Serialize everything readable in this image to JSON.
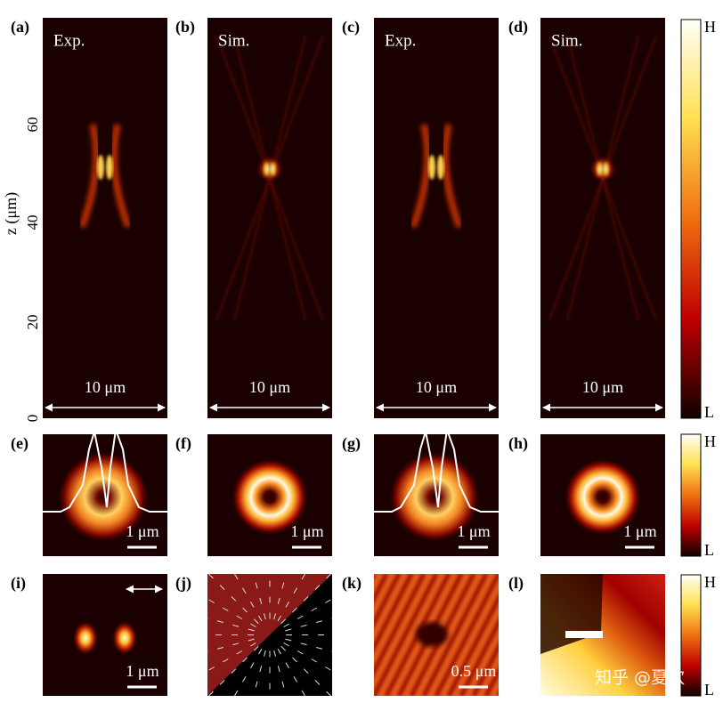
{
  "y_axis": {
    "label": "z (μm)",
    "ticks": [
      "0",
      "20",
      "40",
      "60"
    ]
  },
  "panels": [
    {
      "label": "(a)",
      "title": "Exp.",
      "scale": "10 μm"
    },
    {
      "label": "(b)",
      "title": "Sim.",
      "scale": "10 μm"
    },
    {
      "label": "(c)",
      "title": "Exp.",
      "scale": "10 μm"
    },
    {
      "label": "(d)",
      "title": "Sim.",
      "scale": "10 μm"
    },
    {
      "label": "(e)",
      "scale": "1 μm"
    },
    {
      "label": "(f)",
      "scale": "1 μm"
    },
    {
      "label": "(g)",
      "scale": "1 μm"
    },
    {
      "label": "(h)",
      "scale": "1 μm"
    },
    {
      "label": "(i)",
      "scale": "1 μm"
    },
    {
      "label": "(j)"
    },
    {
      "label": "(k)",
      "scale": "0.5 μm"
    },
    {
      "label": "(l)"
    }
  ],
  "colorbars": [
    {
      "high": "H",
      "low": "L"
    },
    {
      "high": "H",
      "low": "L"
    },
    {
      "high": "H",
      "low": "L"
    }
  ],
  "watermark": "知乎 @夏欢"
}
